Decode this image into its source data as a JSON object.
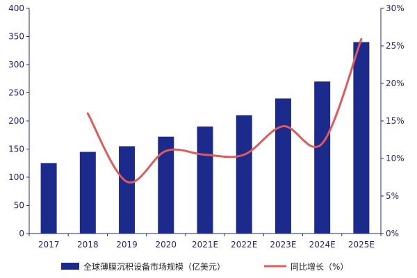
{
  "chart_data": {
    "type": "bar",
    "categories": [
      "2017",
      "2018",
      "2019",
      "2020",
      "2021E",
      "2022E",
      "2023E",
      "2024E",
      "2025E"
    ],
    "series": [
      {
        "name": "全球薄膜沉积设备市场规模（亿美元）",
        "type": "bar",
        "axis": "left",
        "color": "#1c2a8c",
        "values": [
          125,
          145,
          155,
          172,
          190,
          210,
          240,
          270,
          340
        ]
      },
      {
        "name": "同比增长（%）",
        "type": "line",
        "axis": "right",
        "color": "#e05a5a",
        "values": [
          null,
          16.0,
          6.9,
          11.0,
          10.5,
          10.5,
          14.3,
          12.0,
          25.9
        ]
      }
    ],
    "y_left": {
      "ylim": [
        0,
        400
      ],
      "ticks": [
        0,
        50,
        100,
        150,
        200,
        250,
        300,
        350,
        400
      ],
      "tick_labels": [
        "0",
        "50",
        "100",
        "150",
        "200",
        "250",
        "300",
        "350",
        "400"
      ]
    },
    "y_right": {
      "ylim": [
        0,
        30
      ],
      "ticks": [
        0,
        5,
        10,
        15,
        20,
        25,
        30
      ],
      "tick_labels": [
        "0%",
        "5%",
        "10%",
        "15%",
        "20%",
        "25%",
        "30%"
      ]
    },
    "grid": false,
    "legend": "bottom",
    "axis_color": "#1c2a8c"
  }
}
